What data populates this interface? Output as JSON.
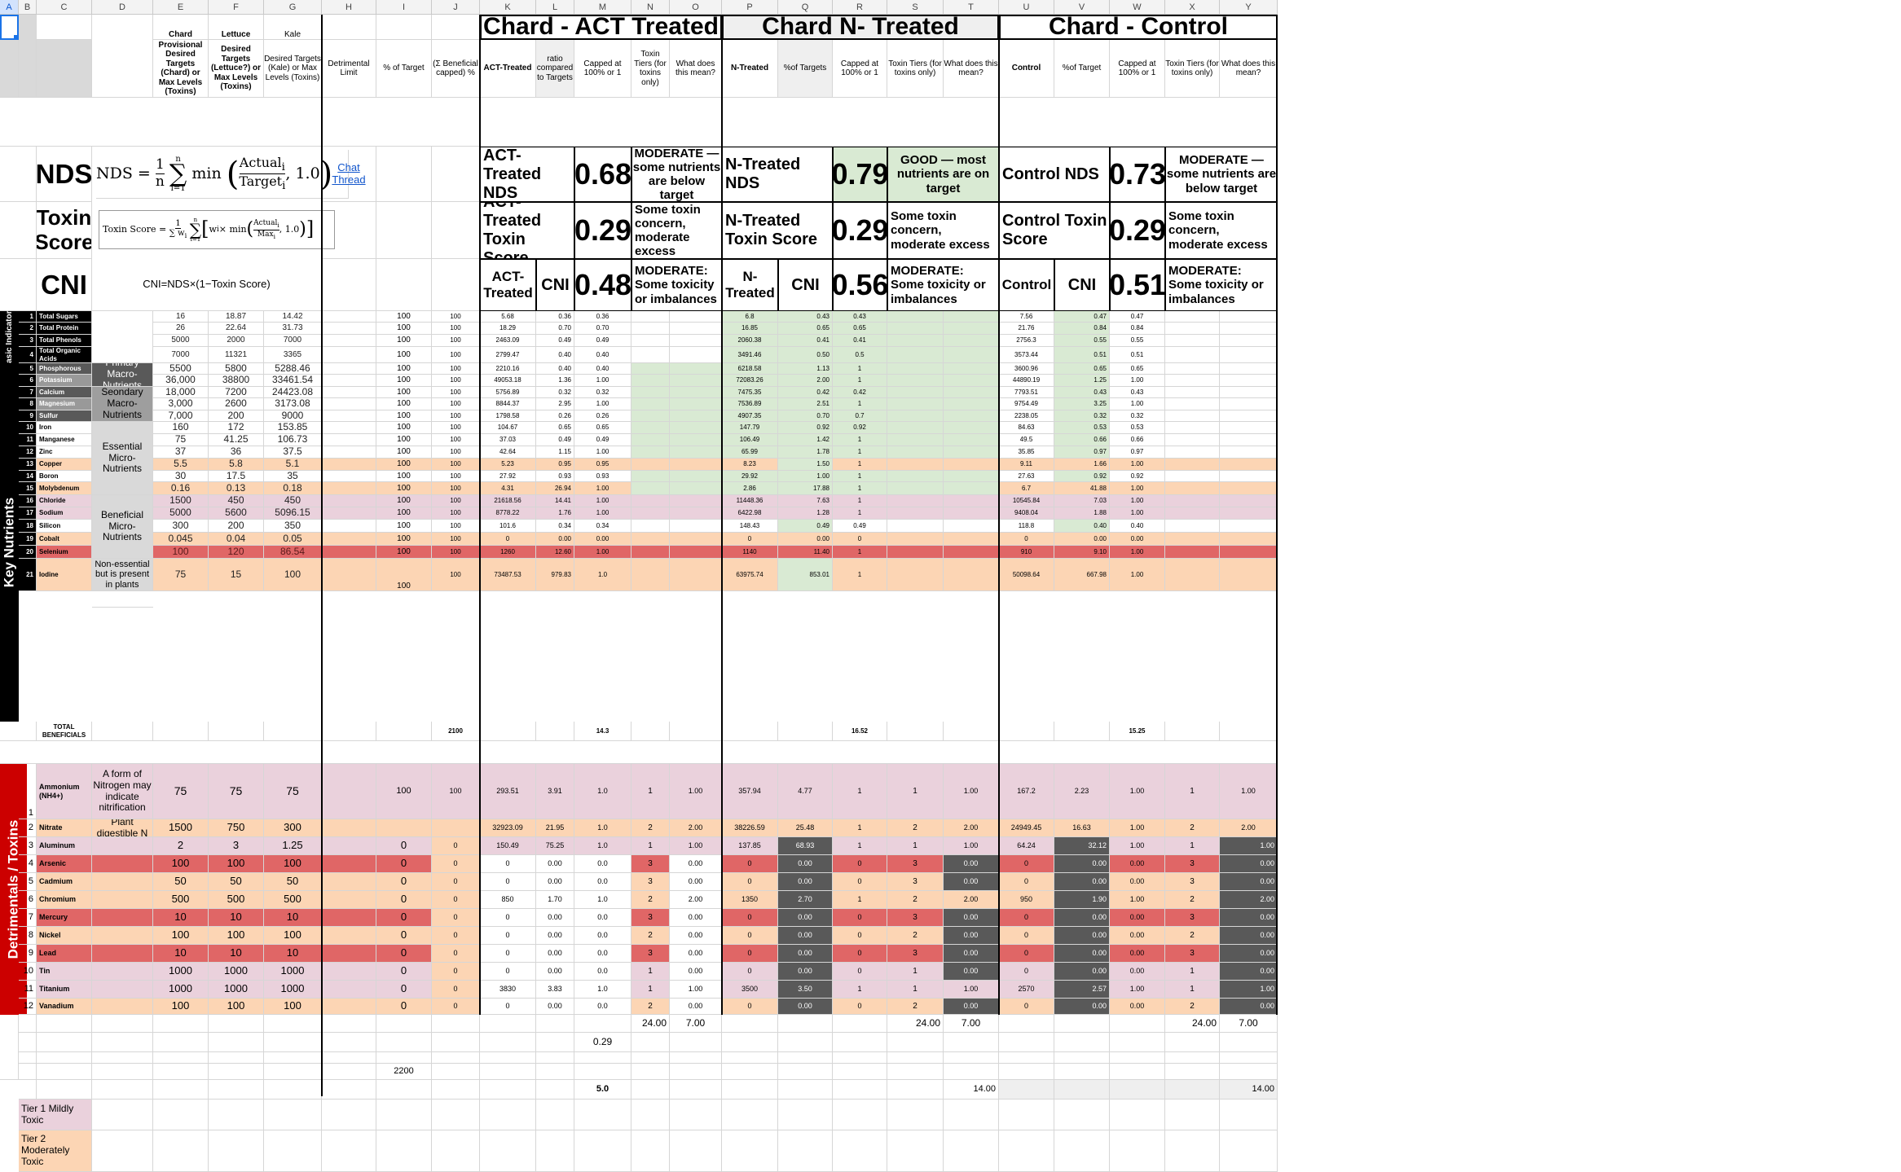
{
  "sheet_title": "",
  "columns": [
    "A",
    "B",
    "C",
    "D",
    "E",
    "F",
    "G",
    "H",
    "I",
    "J",
    "K",
    "L",
    "M",
    "N",
    "O",
    "P",
    "Q",
    "R",
    "S",
    "T",
    "U",
    "V",
    "W",
    "X",
    "Y"
  ],
  "groups": {
    "act": "Chard - ACT Treated",
    "n": "Chard N- Treated",
    "control": "Chard - Control"
  },
  "headers": {
    "e_top": "Chard",
    "e": "Provisional Desired Targets (Chard) or Max Levels (Toxins)",
    "f_top": "Lettuce",
    "f": "Desired Targets (Lettuce?) or Max Levels (Toxins)",
    "g_top": "Kale",
    "g": "Desired Targets (Kale) or Max Levels (Toxins)",
    "h": "Detrimental Limit",
    "i": "% of Target",
    "j": "(Σ Beneficial capped) %",
    "k": "ACT-Treated",
    "l": "ratio compared to Targets",
    "m": "Capped at 100% or 1",
    "n": "Toxin Tiers (for toxins only)",
    "o": "What does this mean?",
    "p": "N-Treated",
    "q": "%of Targets",
    "r": "Capped at 100% or 1",
    "s": "Toxin Tiers (for toxins only)",
    "t": "What does this mean?",
    "u": "Control",
    "v": "%of Target",
    "w": "Capped at 100% or 1",
    "x": "Toxin Tiers (for toxins only)",
    "y": "What does this mean?"
  },
  "summary": {
    "nds_label": "NDS",
    "toxin_label": "Toxin Score",
    "cni_label": "CNI",
    "nds_formula_lhs": "NDS =",
    "toxin_formula_lhs": "Toxin Score =",
    "chat_link": "Chat Thread",
    "cni_formula": "CNI=NDS×(1−Toxin Score)",
    "act_nds_label": "ACT-Treated NDS",
    "act_nds": "0.68",
    "act_nds_text": "MODERATE — some nutrients are below target",
    "act_tox_label": "ACT-Treated Toxin Score",
    "act_tox": "0.29",
    "act_tox_text": "Some toxin concern, moderate excess",
    "act_cni_label": "ACT-Treated",
    "act_cni_sub": "CNI",
    "act_cni": "0.48",
    "act_cni_text": "MODERATE: Some toxicity or imbalances",
    "n_nds_label": "N-Treated NDS",
    "n_nds": "0.79",
    "n_nds_text": "GOOD — most nutrients are on target",
    "n_tox_label": "N-Treated Toxin Score",
    "n_tox": "0.29",
    "n_tox_text": "Some toxin concern, moderate excess",
    "n_cni_label": "N-Treated",
    "n_cni_sub": "CNI",
    "n_cni": "0.56",
    "n_cni_text": "MODERATE: Some toxicity or imbalances",
    "c_nds_label": "Control NDS",
    "c_nds": "0.73",
    "c_nds_text": "MODERATE — some nutrients are below target",
    "c_tox_label": "Control Toxin Score",
    "c_tox": "0.29",
    "c_tox_text": "Some toxin concern, moderate excess",
    "c_cni_label": "Control",
    "c_cni_sub": "CNI",
    "c_cni": "0.51",
    "c_cni_text": "MODERATE: Some toxicity or imbalances"
  },
  "bands": {
    "basic": "Basic Indicators",
    "key": "Key Nutrients",
    "tox": "Detrimentals / Toxins"
  },
  "categories": {
    "primary": "Primary Macro-Nutrients",
    "secondary": "Seondary Macro-Nutrients",
    "essential": "Essential Micro-Nutrients",
    "beneficial": "Beneficial Micro-Nutrients",
    "nonessential": "Non-essential but is present in plants",
    "ammonium_note": "A form of Nitrogen may indicate nitrification",
    "nitrate_note": "Plant digestible N"
  },
  "nutrients": [
    {
      "n": "1",
      "name": "Total Sugars",
      "e": "16",
      "f": "18.87",
      "g": "14.42",
      "i": "100",
      "j": "100",
      "k": "5.68",
      "l": "0.36",
      "m": "0.36",
      "p": "6.8",
      "q": "0.43",
      "r": "0.43",
      "u": "7.56",
      "v": "0.47",
      "w": "0.47"
    },
    {
      "n": "2",
      "name": "Total Protein",
      "e": "26",
      "f": "22.64",
      "g": "31.73",
      "i": "100",
      "j": "100",
      "k": "18.29",
      "l": "0.70",
      "m": "0.70",
      "p": "16.85",
      "q": "0.65",
      "r": "0.65",
      "u": "21.76",
      "v": "0.84",
      "w": "0.84"
    },
    {
      "n": "3",
      "name": "Total Phenols",
      "e": "5000",
      "f": "2000",
      "g": "7000",
      "i": "100",
      "j": "100",
      "k": "2463.09",
      "l": "0.49",
      "m": "0.49",
      "p": "2060.38",
      "q": "0.41",
      "r": "0.41",
      "u": "2756.3",
      "v": "0.55",
      "w": "0.55"
    },
    {
      "n": "4",
      "name": "Total Organic Acids",
      "e": "7000",
      "f": "11321",
      "g": "3365",
      "i": "100",
      "j": "100",
      "k": "2799.47",
      "l": "0.40",
      "m": "0.40",
      "p": "3491.46",
      "q": "0.50",
      "r": "0.5",
      "u": "3573.44",
      "v": "0.51",
      "w": "0.51"
    },
    {
      "n": "5",
      "name": "Phosphorous",
      "e": "5500",
      "f": "5800",
      "g": "5288.46",
      "i": "100",
      "j": "100",
      "k": "2210.16",
      "l": "0.40",
      "m": "0.40",
      "p": "6218.58",
      "q": "1.13",
      "r": "1",
      "u": "3600.96",
      "v": "0.65",
      "w": "0.65"
    },
    {
      "n": "6",
      "name": "Potassium",
      "e": "36,000",
      "f": "38800",
      "g": "33461.54",
      "i": "100",
      "j": "100",
      "k": "49053.18",
      "l": "1.36",
      "m": "1.00",
      "p": "72083.26",
      "q": "2.00",
      "r": "1",
      "u": "44890.19",
      "v": "1.25",
      "w": "1.00"
    },
    {
      "n": "7",
      "name": "Calcium",
      "e": "18,000",
      "f": "7200",
      "g": "24423.08",
      "i": "100",
      "j": "100",
      "k": "5756.89",
      "l": "0.32",
      "m": "0.32",
      "p": "7475.35",
      "q": "0.42",
      "r": "0.42",
      "u": "7793.51",
      "v": "0.43",
      "w": "0.43"
    },
    {
      "n": "8",
      "name": "Magnesium",
      "e": "3,000",
      "f": "2600",
      "g": "3173.08",
      "i": "100",
      "j": "100",
      "k": "8844.37",
      "l": "2.95",
      "m": "1.00",
      "p": "7536.89",
      "q": "2.51",
      "r": "1",
      "u": "9754.49",
      "v": "3.25",
      "w": "1.00"
    },
    {
      "n": "9",
      "name": "Sulfur",
      "e": "7,000",
      "f": "200",
      "g": "9000",
      "i": "100",
      "j": "100",
      "k": "1798.58",
      "l": "0.26",
      "m": "0.26",
      "p": "4907.35",
      "q": "0.70",
      "r": "0.7",
      "u": "2238.05",
      "v": "0.32",
      "w": "0.32"
    },
    {
      "n": "10",
      "name": "Iron",
      "e": "160",
      "f": "172",
      "g": "153.85",
      "i": "100",
      "j": "100",
      "k": "104.67",
      "l": "0.65",
      "m": "0.65",
      "p": "147.79",
      "q": "0.92",
      "r": "0.92",
      "u": "84.63",
      "v": "0.53",
      "w": "0.53"
    },
    {
      "n": "11",
      "name": "Manganese",
      "e": "75",
      "f": "41.25",
      "g": "106.73",
      "i": "100",
      "j": "100",
      "k": "37.03",
      "l": "0.49",
      "m": "0.49",
      "p": "106.49",
      "q": "1.42",
      "r": "1",
      "u": "49.5",
      "v": "0.66",
      "w": "0.66"
    },
    {
      "n": "12",
      "name": "Zinc",
      "e": "37",
      "f": "36",
      "g": "37.5",
      "i": "100",
      "j": "100",
      "k": "42.64",
      "l": "1.15",
      "m": "1.00",
      "p": "65.99",
      "q": "1.78",
      "r": "1",
      "u": "35.85",
      "v": "0.97",
      "w": "0.97"
    },
    {
      "n": "13",
      "name": "Copper",
      "e": "5.5",
      "f": "5.8",
      "g": "5.1",
      "i": "100",
      "j": "100",
      "k": "5.23",
      "l": "0.95",
      "m": "0.95",
      "p": "8.23",
      "q": "1.50",
      "r": "1",
      "u": "9.11",
      "v": "1.66",
      "w": "1.00"
    },
    {
      "n": "14",
      "name": "Boron",
      "e": "30",
      "f": "17.5",
      "g": "35",
      "i": "100",
      "j": "100",
      "k": "27.92",
      "l": "0.93",
      "m": "0.93",
      "p": "29.92",
      "q": "1.00",
      "r": "1",
      "u": "27.63",
      "v": "0.92",
      "w": "0.92"
    },
    {
      "n": "15",
      "name": "Molybdenum",
      "e": "0.16",
      "f": "0.13",
      "g": "0.18",
      "i": "100",
      "j": "100",
      "k": "4.31",
      "l": "26.94",
      "m": "1.00",
      "p": "2.86",
      "q": "17.88",
      "r": "1",
      "u": "6.7",
      "v": "41.88",
      "w": "1.00"
    },
    {
      "n": "16",
      "name": "Chloride",
      "e": "1500",
      "f": "450",
      "g": "450",
      "i": "100",
      "j": "100",
      "k": "21618.56",
      "l": "14.41",
      "m": "1.00",
      "p": "11448.36",
      "q": "7.63",
      "r": "1",
      "u": "10545.84",
      "v": "7.03",
      "w": "1.00"
    },
    {
      "n": "17",
      "name": "Sodium",
      "e": "5000",
      "f": "5600",
      "g": "5096.15",
      "i": "100",
      "j": "100",
      "k": "8778.22",
      "l": "1.76",
      "m": "1.00",
      "p": "6422.98",
      "q": "1.28",
      "r": "1",
      "u": "9408.04",
      "v": "1.88",
      "w": "1.00"
    },
    {
      "n": "18",
      "name": "Silicon",
      "e": "300",
      "f": "200",
      "g": "350",
      "i": "100",
      "j": "100",
      "k": "101.6",
      "l": "0.34",
      "m": "0.34",
      "p": "148.43",
      "q": "0.49",
      "r": "0.49",
      "u": "118.8",
      "v": "0.40",
      "w": "0.40"
    },
    {
      "n": "19",
      "name": "Cobalt",
      "e": "0.045",
      "f": "0.04",
      "g": "0.05",
      "i": "100",
      "j": "100",
      "k": "0",
      "l": "0.00",
      "m": "0.00",
      "p": "0",
      "q": "0.00",
      "r": "0",
      "u": "0",
      "v": "0.00",
      "w": "0.00"
    },
    {
      "n": "20",
      "name": "Selenium",
      "e": "100",
      "f": "120",
      "g": "86.54",
      "i": "100",
      "j": "100",
      "k": "1260",
      "l": "12.60",
      "m": "1.00",
      "p": "1140",
      "q": "11.40",
      "r": "1",
      "u": "910",
      "v": "9.10",
      "w": "1.00"
    },
    {
      "n": "21",
      "name": "Iodine",
      "e": "75",
      "f": "15",
      "g": "100",
      "i": "100",
      "j": "100",
      "k": "73487.53",
      "l": "979.83",
      "m": "1.0",
      "p": "63975.74",
      "q": "853.01",
      "r": "1",
      "u": "50098.64",
      "v": "667.98",
      "w": "1.00"
    }
  ],
  "totals": {
    "label": "TOTAL BENEFICIALS",
    "j": "2100",
    "m": "14.3",
    "r": "16.52",
    "w": "15.25"
  },
  "toxins": [
    {
      "n": "1",
      "name": "Ammonium (NH4+)",
      "e": "75",
      "f": "75",
      "g": "75",
      "i": "100",
      "j": "100",
      "k": "293.51",
      "l": "3.91",
      "m": "1.0",
      "nn": "1",
      "o": "1.00",
      "p": "357.94",
      "q": "4.77",
      "r": "1",
      "s": "1",
      "t": "1.00",
      "u": "167.2",
      "v": "2.23",
      "w": "1.00",
      "x": "1",
      "y": "1.00"
    },
    {
      "n": "2",
      "name": "Nitrate",
      "e": "1500",
      "f": "750",
      "g": "300",
      "i": "",
      "j": "",
      "k": "32923.09",
      "l": "21.95",
      "m": "1.0",
      "nn": "2",
      "o": "2.00",
      "p": "38226.59",
      "q": "25.48",
      "r": "1",
      "s": "2",
      "t": "2.00",
      "u": "24949.45",
      "v": "16.63",
      "w": "1.00",
      "x": "2",
      "y": "2.00"
    },
    {
      "n": "3",
      "name": "Aluminum",
      "e": "2",
      "f": "3",
      "g": "1.25",
      "i": "0",
      "j": "0",
      "k": "150.49",
      "l": "75.25",
      "m": "1.0",
      "nn": "1",
      "o": "1.00",
      "p": "137.85",
      "q": "68.93",
      "r": "1",
      "s": "1",
      "t": "1.00",
      "u": "64.24",
      "v": "32.12",
      "w": "1.00",
      "x": "1",
      "y": "1.00"
    },
    {
      "n": "4",
      "name": "Arsenic",
      "e": "100",
      "f": "100",
      "g": "100",
      "i": "0",
      "j": "0",
      "k": "0",
      "l": "0.00",
      "m": "0.0",
      "nn": "3",
      "o": "0.00",
      "p": "0",
      "q": "0.00",
      "r": "0",
      "s": "3",
      "t": "0.00",
      "u": "0",
      "v": "0.00",
      "w": "0.00",
      "x": "3",
      "y": "0.00"
    },
    {
      "n": "5",
      "name": "Cadmium",
      "e": "50",
      "f": "50",
      "g": "50",
      "i": "0",
      "j": "0",
      "k": "0",
      "l": "0.00",
      "m": "0.0",
      "nn": "3",
      "o": "0.00",
      "p": "0",
      "q": "0.00",
      "r": "0",
      "s": "3",
      "t": "0.00",
      "u": "0",
      "v": "0.00",
      "w": "0.00",
      "x": "3",
      "y": "0.00"
    },
    {
      "n": "6",
      "name": "Chromium",
      "e": "500",
      "f": "500",
      "g": "500",
      "i": "0",
      "j": "0",
      "k": "850",
      "l": "1.70",
      "m": "1.0",
      "nn": "2",
      "o": "2.00",
      "p": "1350",
      "q": "2.70",
      "r": "1",
      "s": "2",
      "t": "2.00",
      "u": "950",
      "v": "1.90",
      "w": "1.00",
      "x": "2",
      "y": "2.00"
    },
    {
      "n": "7",
      "name": "Mercury",
      "e": "10",
      "f": "10",
      "g": "10",
      "i": "0",
      "j": "0",
      "k": "0",
      "l": "0.00",
      "m": "0.0",
      "nn": "3",
      "o": "0.00",
      "p": "0",
      "q": "0.00",
      "r": "0",
      "s": "3",
      "t": "0.00",
      "u": "0",
      "v": "0.00",
      "w": "0.00",
      "x": "3",
      "y": "0.00"
    },
    {
      "n": "8",
      "name": "Nickel",
      "e": "100",
      "f": "100",
      "g": "100",
      "i": "0",
      "j": "0",
      "k": "0",
      "l": "0.00",
      "m": "0.0",
      "nn": "2",
      "o": "0.00",
      "p": "0",
      "q": "0.00",
      "r": "0",
      "s": "2",
      "t": "0.00",
      "u": "0",
      "v": "0.00",
      "w": "0.00",
      "x": "2",
      "y": "0.00"
    },
    {
      "n": "9",
      "name": "Lead",
      "e": "10",
      "f": "10",
      "g": "10",
      "i": "0",
      "j": "0",
      "k": "0",
      "l": "0.00",
      "m": "0.0",
      "nn": "3",
      "o": "0.00",
      "p": "0",
      "q": "0.00",
      "r": "0",
      "s": "3",
      "t": "0.00",
      "u": "0",
      "v": "0.00",
      "w": "0.00",
      "x": "3",
      "y": "0.00"
    },
    {
      "n": "10",
      "name": "Tin",
      "e": "1000",
      "f": "1000",
      "g": "1000",
      "i": "0",
      "j": "0",
      "k": "0",
      "l": "0.00",
      "m": "0.0",
      "nn": "1",
      "o": "0.00",
      "p": "0",
      "q": "0.00",
      "r": "0",
      "s": "1",
      "t": "0.00",
      "u": "0",
      "v": "0.00",
      "w": "0.00",
      "x": "1",
      "y": "0.00"
    },
    {
      "n": "11",
      "name": "Titanium",
      "e": "1000",
      "f": "1000",
      "g": "1000",
      "i": "0",
      "j": "0",
      "k": "3830",
      "l": "3.83",
      "m": "1.0",
      "nn": "1",
      "o": "1.00",
      "p": "3500",
      "q": "3.50",
      "r": "1",
      "s": "1",
      "t": "1.00",
      "u": "2570",
      "v": "2.57",
      "w": "1.00",
      "x": "1",
      "y": "1.00"
    },
    {
      "n": "12",
      "name": "Vanadium",
      "e": "100",
      "f": "100",
      "g": "100",
      "i": "0",
      "j": "0",
      "k": "0",
      "l": "0.00",
      "m": "0.0",
      "nn": "2",
      "o": "0.00",
      "p": "0",
      "q": "0.00",
      "r": "0",
      "s": "2",
      "t": "0.00",
      "u": "0",
      "v": "0.00",
      "w": "0.00",
      "x": "2",
      "y": "0.00"
    }
  ],
  "footer": {
    "n_sum": "24.00",
    "o_sum": "7.00",
    "s_sum": "24.00",
    "t_sum": "7.00",
    "x_sum": "24.00",
    "y_sum": "7.00",
    "m_val": "0.29",
    "i_total": "2200",
    "m_total": "5.0",
    "t_total": "14.00",
    "y_total": "14.00"
  },
  "legend": {
    "tier1": "Tier 1 Mildly Toxic",
    "tier2": "Tier 2 Moderately Toxic"
  },
  "colors": {
    "green": "#d9ead3",
    "pink": "#ead1dc",
    "orange": "#fcd5b4",
    "red": "#e06666",
    "dark": "#595959",
    "black": "#000000",
    "darkred": "#cc0000",
    "grey": "#d9d9d9"
  }
}
